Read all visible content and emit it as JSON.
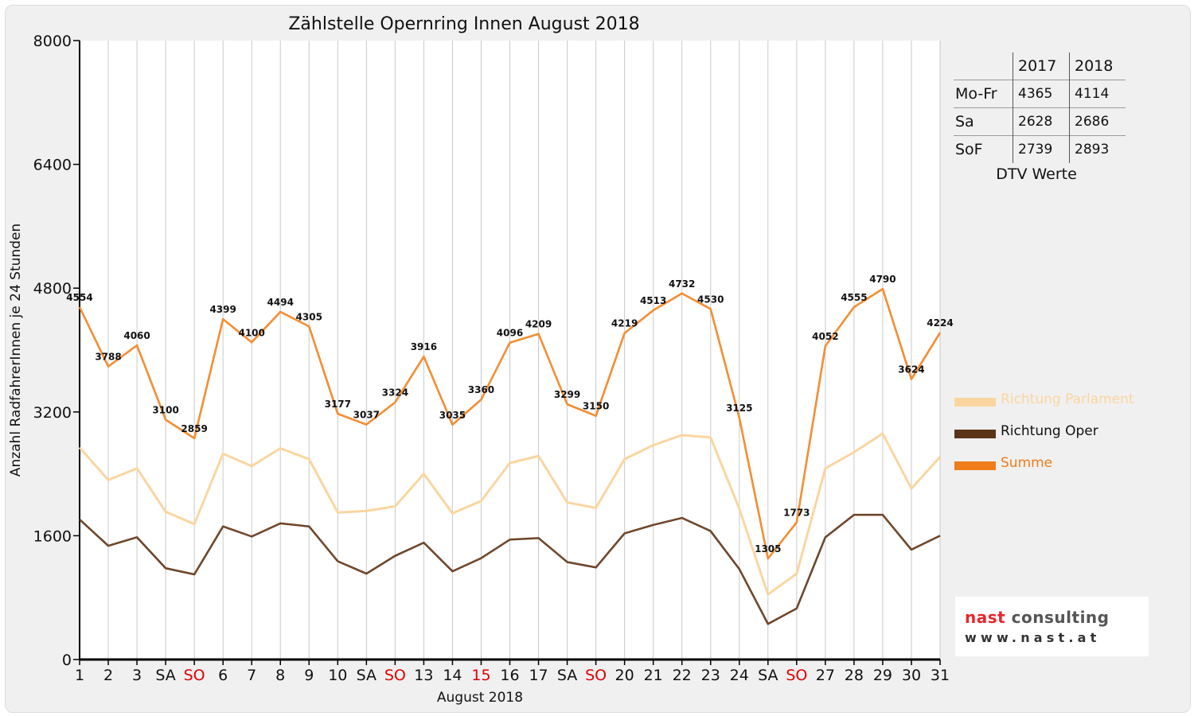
{
  "chart_data": {
    "type": "line",
    "title": "Zählstelle Opernring Innen August 2018",
    "xlabel": "August 2018",
    "ylabel": "Anzahl RadfahrerInnen je 24 Stunden",
    "ylim": [
      0,
      8000
    ],
    "yticks": [
      "0",
      "1600",
      "3200",
      "4800",
      "6400",
      "8000"
    ],
    "categories": [
      "1",
      "2",
      "3",
      "SA",
      "SO",
      "6",
      "7",
      "8",
      "9",
      "10",
      "SA",
      "SO",
      "13",
      "14",
      "15",
      "16",
      "17",
      "SA",
      "SO",
      "20",
      "21",
      "22",
      "23",
      "24",
      "SA",
      "SO",
      "27",
      "28",
      "29",
      "30",
      "31"
    ],
    "highlight_categories": [
      4,
      11,
      14,
      18,
      25
    ],
    "highlight_color": "#e00000",
    "grid": "vertical",
    "legend_position": "right",
    "series": [
      {
        "name": "Richtung Parlament",
        "color": "#fbd5a0",
        "values": [
          2740,
          2320,
          2470,
          1910,
          1750,
          2660,
          2500,
          2730,
          2590,
          1900,
          1920,
          1980,
          2400,
          1890,
          2050,
          2540,
          2630,
          2030,
          1960,
          2590,
          2770,
          2900,
          2870,
          1950,
          840,
          1110,
          2470,
          2680,
          2920,
          2210,
          2620
        ]
      },
      {
        "name": "Richtung Oper",
        "color": "#5b3418",
        "values": [
          1810,
          1470,
          1580,
          1180,
          1100,
          1720,
          1590,
          1760,
          1720,
          1270,
          1110,
          1340,
          1510,
          1140,
          1310,
          1550,
          1570,
          1260,
          1190,
          1630,
          1740,
          1830,
          1660,
          1170,
          460,
          660,
          1580,
          1870,
          1870,
          1420,
          1600
        ]
      },
      {
        "name": "Summe",
        "color": "#f07d1a",
        "values": [
          4554,
          3788,
          4060,
          3100,
          2859,
          4399,
          4100,
          4494,
          4305,
          3177,
          3037,
          3324,
          3916,
          3035,
          3360,
          4096,
          4209,
          3299,
          3150,
          4219,
          4513,
          4732,
          4530,
          3125,
          1305,
          1773,
          4052,
          4555,
          4790,
          3624,
          4224
        ],
        "data_labels": [
          "4554",
          "3788",
          "4060",
          "3100",
          "2859",
          "4399",
          "4100",
          "4494",
          "4305",
          "3177",
          "3037",
          "3324",
          "3916",
          "3035",
          "3360",
          "4096",
          "4209",
          "3299",
          "3150",
          "4219",
          "4513",
          "4732",
          "4530",
          "3125",
          "1305",
          "1773",
          "4052",
          "4555",
          "4790",
          "3624",
          "4224"
        ]
      }
    ]
  },
  "dtv_table": {
    "caption": "DTV Werte",
    "columns": [
      "2017",
      "2018"
    ],
    "rows": [
      {
        "label": "Mo-Fr",
        "v2017": "4365",
        "v2018": "4114"
      },
      {
        "label": "Sa",
        "v2017": "2628",
        "v2018": "2686"
      },
      {
        "label": "SoF",
        "v2017": "2739",
        "v2018": "2893"
      }
    ]
  },
  "logo": {
    "name_part1": "nast",
    "name_part2": "consulting",
    "website": "www.nast.at",
    "color_part1": "#e8262c",
    "color_part2": "#555555"
  }
}
